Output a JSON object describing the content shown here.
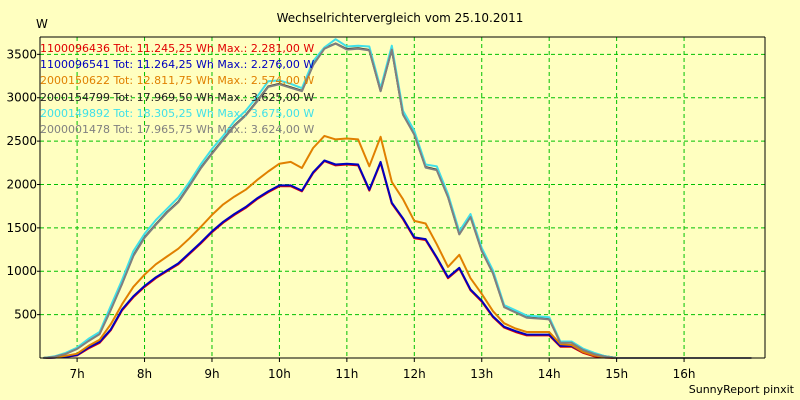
{
  "chart_data": {
    "type": "line",
    "title": "Wechselrichtervergleich vom 25.10.2011",
    "ylabel": "W",
    "xlabel": "",
    "footer": "SunnyReport pinxit",
    "ylim": [
      0,
      3700
    ],
    "xlim": [
      6.45,
      17.2
    ],
    "yticks": [
      500,
      1000,
      1500,
      2000,
      2500,
      3000,
      3500
    ],
    "xticks": [
      {
        "value": 7,
        "label": "7h"
      },
      {
        "value": 8,
        "label": "8h"
      },
      {
        "value": 9,
        "label": "9h"
      },
      {
        "value": 10,
        "label": "10h"
      },
      {
        "value": 11,
        "label": "11h"
      },
      {
        "value": 12,
        "label": "12h"
      },
      {
        "value": 13,
        "label": "13h"
      },
      {
        "value": 14,
        "label": "14h"
      },
      {
        "value": 15,
        "label": "15h"
      },
      {
        "value": 16,
        "label": "16h"
      }
    ],
    "grid": true,
    "colors": {
      "background": "#ffffc0",
      "plot_background": "#ffffc0",
      "grid": "#00c000",
      "axis": "#000000"
    },
    "x": [
      6.5,
      6.667,
      6.833,
      7,
      7.167,
      7.333,
      7.5,
      7.667,
      7.833,
      8,
      8.167,
      8.333,
      8.5,
      8.667,
      8.833,
      9,
      9.167,
      9.333,
      9.5,
      9.667,
      9.833,
      10,
      10.167,
      10.333,
      10.5,
      10.667,
      10.833,
      11,
      11.167,
      11.333,
      11.5,
      11.667,
      11.833,
      12,
      12.167,
      12.333,
      12.5,
      12.667,
      12.833,
      13,
      13.167,
      13.333,
      13.5,
      13.667,
      13.833,
      14,
      14.167,
      14.333,
      14.5,
      14.667,
      14.833,
      15,
      15.167,
      15.333,
      15.5,
      15.667,
      15.833,
      16,
      16.167,
      16.333,
      16.5,
      16.667,
      16.833,
      17
    ],
    "series": [
      {
        "name": "1100096436",
        "legend": "1100096436 Tot: 11.245,25 Wh Max.: 2.281,00 W",
        "color": "#e00000",
        "values": [
          0,
          5,
          15,
          30,
          110,
          175,
          320,
          550,
          700,
          820,
          920,
          1000,
          1080,
          1200,
          1320,
          1450,
          1560,
          1650,
          1730,
          1830,
          1910,
          1980,
          1980,
          1920,
          2130,
          2270,
          2220,
          2230,
          2220,
          1930,
          2250,
          1780,
          1600,
          1380,
          1360,
          1150,
          920,
          1030,
          780,
          650,
          470,
          350,
          300,
          260,
          260,
          260,
          130,
          130,
          60,
          20,
          5,
          0,
          0,
          0,
          0,
          0,
          0,
          0,
          0,
          0,
          0,
          0,
          0,
          0
        ]
      },
      {
        "name": "1100096541",
        "legend": "1100096541 Tot: 11.264,25 Wh Max.: 2.276,00 W",
        "color": "#0000c0",
        "values": [
          0,
          5,
          15,
          35,
          120,
          185,
          330,
          560,
          710,
          830,
          930,
          1010,
          1090,
          1210,
          1330,
          1460,
          1570,
          1660,
          1740,
          1840,
          1920,
          1990,
          1990,
          1930,
          2140,
          2276,
          2230,
          2240,
          2230,
          1940,
          2260,
          1790,
          1610,
          1390,
          1370,
          1160,
          930,
          1040,
          790,
          660,
          480,
          360,
          310,
          270,
          270,
          270,
          140,
          140,
          70,
          30,
          10,
          0,
          0,
          0,
          0,
          0,
          0,
          0,
          0,
          0,
          0,
          0,
          0,
          0
        ]
      },
      {
        "name": "2000150622",
        "legend": "2000150622 Tot: 12.811,75 Wh Max.: 2.574,00 W",
        "color": "#e08000",
        "values": [
          0,
          8,
          25,
          50,
          140,
          210,
          390,
          620,
          820,
          960,
          1080,
          1170,
          1260,
          1380,
          1510,
          1650,
          1770,
          1860,
          1940,
          2050,
          2150,
          2240,
          2260,
          2190,
          2420,
          2560,
          2520,
          2530,
          2520,
          2210,
          2550,
          2030,
          1830,
          1580,
          1550,
          1310,
          1050,
          1190,
          920,
          740,
          540,
          400,
          340,
          300,
          300,
          300,
          160,
          150,
          70,
          30,
          10,
          0,
          0,
          0,
          0,
          0,
          0,
          0,
          0,
          0,
          0,
          0,
          0,
          0
        ]
      },
      {
        "name": "2000154799",
        "legend": "2000154799 Tot: 17.969,50 Wh Max.: 3.625,00 W",
        "color": "#202020",
        "values": [
          0,
          15,
          50,
          110,
          200,
          280,
          560,
          860,
          1180,
          1390,
          1540,
          1680,
          1800,
          1990,
          2190,
          2360,
          2520,
          2680,
          2800,
          2960,
          3130,
          3160,
          3120,
          3080,
          3380,
          3570,
          3625,
          3560,
          3570,
          3550,
          3080,
          3560,
          2810,
          2580,
          2200,
          2170,
          1860,
          1430,
          1630,
          1240,
          980,
          590,
          530,
          470,
          460,
          450,
          180,
          180,
          100,
          50,
          20,
          0,
          0,
          0,
          0,
          0,
          0,
          0,
          0,
          0,
          0,
          0,
          0,
          0
        ]
      },
      {
        "name": "2000149892",
        "legend": "2000149892 Tot: 18.305,25 Wh Max.: 3.675,00 W",
        "color": "#40e0e8",
        "values": [
          0,
          20,
          60,
          120,
          220,
          300,
          600,
          900,
          1230,
          1430,
          1590,
          1720,
          1850,
          2030,
          2230,
          2410,
          2560,
          2730,
          2850,
          3010,
          3190,
          3200,
          3160,
          3110,
          3420,
          3580,
          3675,
          3590,
          3600,
          3590,
          3110,
          3600,
          2850,
          2620,
          2230,
          2210,
          1890,
          1460,
          1660,
          1270,
          1010,
          610,
          550,
          490,
          480,
          470,
          190,
          190,
          110,
          60,
          20,
          0,
          0,
          0,
          0,
          0,
          0,
          0,
          0,
          0,
          0,
          0,
          0,
          0
        ]
      },
      {
        "name": "2000001478",
        "legend": "2000001478 Tot: 17.965,75 Wh Max.: 3.624,00 W",
        "color": "#808080",
        "values": [
          0,
          15,
          48,
          105,
          195,
          275,
          555,
          855,
          1175,
          1385,
          1535,
          1675,
          1795,
          1985,
          2185,
          2355,
          2515,
          2675,
          2795,
          2955,
          3125,
          3155,
          3115,
          3075,
          3375,
          3565,
          3624,
          3555,
          3565,
          3545,
          3075,
          3555,
          2805,
          2575,
          2195,
          2165,
          1855,
          1425,
          1625,
          1235,
          975,
          585,
          525,
          465,
          455,
          445,
          175,
          175,
          95,
          45,
          15,
          0,
          0,
          0,
          0,
          0,
          0,
          0,
          0,
          0,
          0,
          0,
          0,
          0
        ]
      }
    ]
  }
}
